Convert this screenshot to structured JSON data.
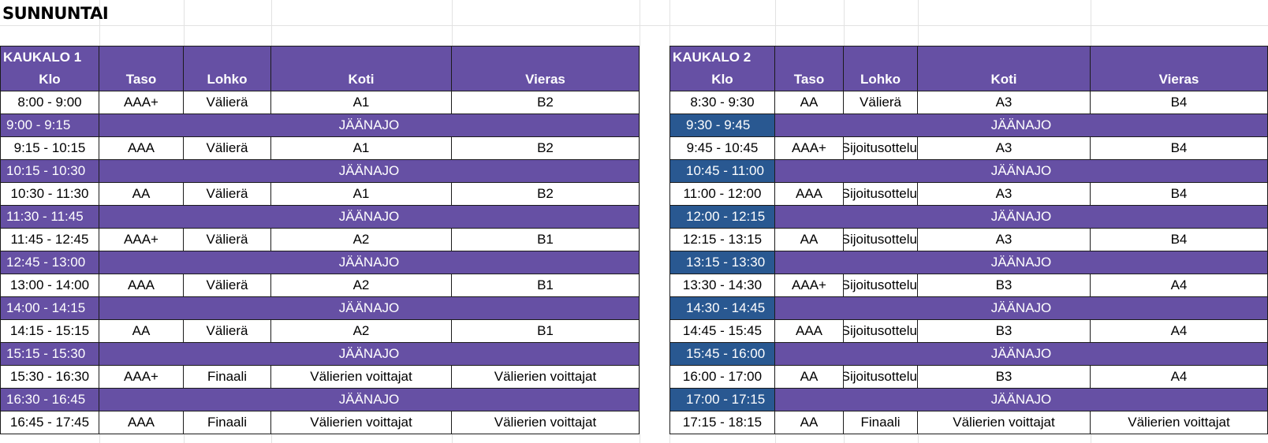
{
  "sheet": {
    "title": "SUNNUNTAI"
  },
  "rinks": [
    {
      "title": "KAUKALO 1",
      "headers": [
        "Klo",
        "Taso",
        "Lohko",
        "Koti",
        "Vieras"
      ],
      "rows": [
        {
          "type": "game",
          "time": "8:00 - 9:00",
          "level": "AAA+",
          "group": "Välierä",
          "home": "A1",
          "away": "B2"
        },
        {
          "type": "break",
          "time": "9:00 - 9:15",
          "label": "JÄÄNAJO"
        },
        {
          "type": "game",
          "time": "9:15 - 10:15",
          "level": "AAA",
          "group": "Välierä",
          "home": "A1",
          "away": "B2"
        },
        {
          "type": "break",
          "time": "10:15 - 10:30",
          "label": "JÄÄNAJO"
        },
        {
          "type": "game",
          "time": "10:30 - 11:30",
          "level": "AA",
          "group": "Välierä",
          "home": "A1",
          "away": "B2"
        },
        {
          "type": "break",
          "time": "11:30 - 11:45",
          "label": "JÄÄNAJO"
        },
        {
          "type": "game",
          "time": "11:45 - 12:45",
          "level": "AAA+",
          "group": "Välierä",
          "home": "A2",
          "away": "B1"
        },
        {
          "type": "break",
          "time": "12:45 - 13:00",
          "label": "JÄÄNAJO"
        },
        {
          "type": "game",
          "time": "13:00 - 14:00",
          "level": "AAA",
          "group": "Välierä",
          "home": "A2",
          "away": "B1"
        },
        {
          "type": "break",
          "time": "14:00 - 14:15",
          "label": "JÄÄNAJO"
        },
        {
          "type": "game",
          "time": "14:15 - 15:15",
          "level": "AA",
          "group": "Välierä",
          "home": "A2",
          "away": "B1"
        },
        {
          "type": "break",
          "time": "15:15 - 15:30",
          "label": "JÄÄNAJO"
        },
        {
          "type": "game",
          "time": "15:30 - 16:30",
          "level": "AAA+",
          "group": "Finaali",
          "home": "Välierien voittajat",
          "away": "Välierien voittajat"
        },
        {
          "type": "break",
          "time": "16:30 - 16:45",
          "label": "JÄÄNAJO"
        },
        {
          "type": "game",
          "time": "16:45 - 17:45",
          "level": "AAA",
          "group": "Finaali",
          "home": "Välierien voittajat",
          "away": "Välierien voittajat"
        }
      ]
    },
    {
      "title": "KAUKALO 2",
      "headers": [
        "Klo",
        "Taso",
        "Lohko",
        "Koti",
        "Vieras"
      ],
      "rows": [
        {
          "type": "game",
          "time": "8:30 - 9:30",
          "level": "AA",
          "group": "Välierä",
          "home": "A3",
          "away": "B4"
        },
        {
          "type": "break",
          "time": "9:30 - 9:45",
          "label": "JÄÄNAJO"
        },
        {
          "type": "game",
          "time": "9:45 - 10:45",
          "level": "AAA+",
          "group": "Sijoitusottelu",
          "home": "A3",
          "away": "B4"
        },
        {
          "type": "break",
          "time": "10:45 - 11:00",
          "label": "JÄÄNAJO"
        },
        {
          "type": "game",
          "time": "11:00 - 12:00",
          "level": "AAA",
          "group": "Sijoitusottelu",
          "home": "A3",
          "away": "B4"
        },
        {
          "type": "break",
          "time": "12:00 - 12:15",
          "label": "JÄÄNAJO"
        },
        {
          "type": "game",
          "time": "12:15 - 13:15",
          "level": "AA",
          "group": "Sijoitusottelu",
          "home": "A3",
          "away": "B4"
        },
        {
          "type": "break",
          "time": "13:15 - 13:30",
          "label": "JÄÄNAJO"
        },
        {
          "type": "game",
          "time": "13:30 - 14:30",
          "level": "AAA+",
          "group": "Sijoitusottelu",
          "home": "B3",
          "away": "A4"
        },
        {
          "type": "break",
          "time": "14:30 - 14:45",
          "label": "JÄÄNAJO"
        },
        {
          "type": "game",
          "time": "14:45 - 15:45",
          "level": "AAA",
          "group": "Sijoitusottelu",
          "home": "B3",
          "away": "A4"
        },
        {
          "type": "break",
          "time": "15:45 - 16:00",
          "label": "JÄÄNAJO"
        },
        {
          "type": "game",
          "time": "16:00 - 17:00",
          "level": "AA",
          "group": "Sijoitusottelu",
          "home": "B3",
          "away": "A4"
        },
        {
          "type": "break",
          "time": "17:00 - 17:15",
          "label": "JÄÄNAJO"
        },
        {
          "type": "game",
          "time": "17:15 - 18:15",
          "level": "AA",
          "group": "Finaali",
          "home": "Välierien voittajat",
          "away": "Välierien voittajat"
        }
      ]
    }
  ],
  "colors": {
    "header_purple": "#6650a4",
    "break_time_blue": "#295891",
    "grid_line": "#e2e2e2"
  }
}
